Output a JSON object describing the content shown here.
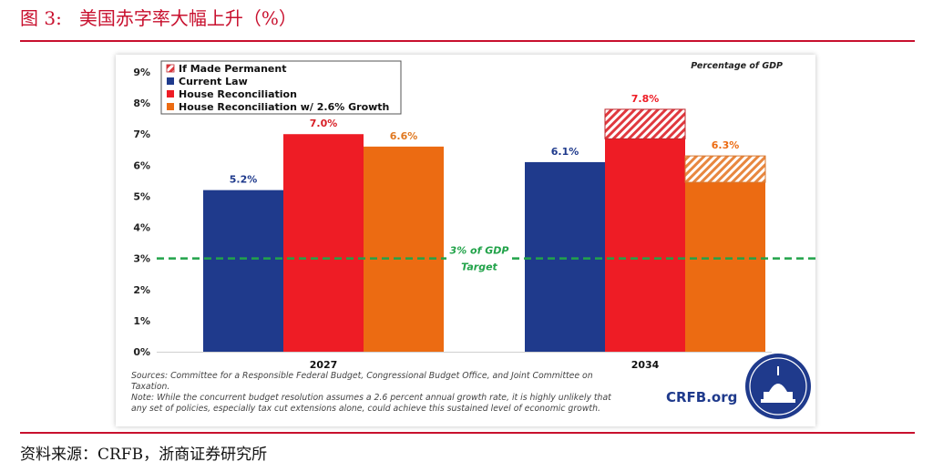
{
  "figure": {
    "title": "图 3:   美国赤字率大幅上升（%）",
    "source": "资料来源：CRFB，浙商证券研究所"
  },
  "chart_data": {
    "type": "bar",
    "title": "",
    "unit_label": "Percentage of GDP",
    "categories": [
      "2027",
      "2034"
    ],
    "series": [
      {
        "name": "Current Law",
        "color": "#1f3a8c",
        "values": [
          5.2,
          6.1
        ],
        "labels": [
          "5.2%",
          "6.1%"
        ]
      },
      {
        "name": "House Reconciliation",
        "color": "#ee1c25",
        "values": [
          7.0,
          6.85
        ],
        "labels": [
          "7.0%",
          ""
        ]
      },
      {
        "name": "House Reconciliation w/ 2.6% Growth",
        "color": "#ec6b12",
        "values": [
          6.6,
          5.45
        ],
        "labels": [
          "6.6%",
          ""
        ]
      }
    ],
    "if_made_permanent": {
      "name": "If Made Permanent",
      "values": {
        "House Reconciliation": [
          null,
          7.8
        ],
        "House Reconciliation w/ 2.6% Growth": [
          null,
          6.3
        ]
      },
      "labels": {
        "House Reconciliation": [
          "",
          "7.8%"
        ],
        "House Reconciliation w/ 2.6% Growth": [
          "",
          "6.3%"
        ]
      }
    },
    "yticks": [
      "0%",
      "1%",
      "2%",
      "3%",
      "4%",
      "5%",
      "6%",
      "7%",
      "8%",
      "9%"
    ],
    "ylim": [
      0,
      9
    ],
    "reference_line": {
      "value": 3,
      "label_line1": "3% of GDP",
      "label_line2": "Target",
      "color": "#22a34a"
    },
    "legend_position": "top-left",
    "notes": [
      "Sources: Committee for a Responsible Federal Budget, Congressional Budget Office, and Joint Committee on",
      "Taxation.",
      "Note: While the concurrent budget resolution assumes a 2.6 percent annual growth rate, it is highly unlikely that",
      "any set of policies, especially tax cut extensions alone, could achieve this sustained level of economic growth."
    ],
    "logo_text": "CRFB.org"
  }
}
